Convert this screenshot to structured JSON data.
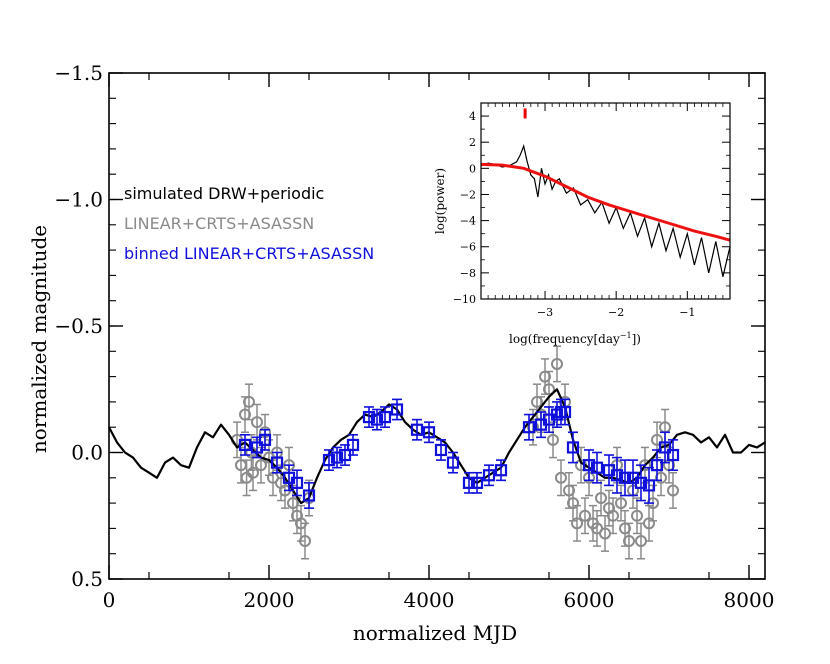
{
  "chart_data": [
    {
      "type": "line",
      "role": "main",
      "xlabel": "normalized MJD",
      "ylabel": "normalized magnitude",
      "xlim": [
        0,
        8200
      ],
      "ylim": [
        0.5,
        -1.5
      ],
      "y_inverted": true,
      "xticks": [
        0,
        2000,
        4000,
        6000,
        8000
      ],
      "xtick_labels": [
        "0",
        "2000",
        "4000",
        "6000",
        "8000"
      ],
      "yticks": [
        -1.5,
        -1.0,
        -0.5,
        0.0,
        0.5
      ],
      "ytick_labels": [
        "−1.5",
        "−1.0",
        "−0.5",
        "0.0",
        "0.5"
      ],
      "legend_position": "middle-left",
      "series": [
        {
          "name": "simulated DRW+periodic",
          "color": "#000000",
          "style": "line",
          "x": [
            0,
            100,
            200,
            300,
            400,
            500,
            600,
            700,
            800,
            900,
            1000,
            1100,
            1200,
            1300,
            1400,
            1500,
            1600,
            1700,
            1800,
            1900,
            2000,
            2100,
            2200,
            2300,
            2400,
            2500,
            2600,
            2700,
            2800,
            2900,
            3000,
            3100,
            3200,
            3300,
            3400,
            3500,
            3600,
            3700,
            3800,
            3900,
            4000,
            4100,
            4200,
            4300,
            4400,
            4500,
            4600,
            4700,
            4800,
            4900,
            5000,
            5100,
            5200,
            5300,
            5400,
            5500,
            5600,
            5700,
            5800,
            5900,
            6000,
            6100,
            6200,
            6300,
            6400,
            6500,
            6600,
            6700,
            6800,
            6900,
            7000,
            7100,
            7200,
            7300,
            7400,
            7500,
            7600,
            7700,
            7800,
            7900,
            8000,
            8100,
            8200
          ],
          "y": [
            -0.1,
            -0.04,
            0.0,
            0.02,
            0.06,
            0.08,
            0.1,
            0.04,
            0.02,
            0.05,
            0.06,
            -0.02,
            -0.08,
            -0.06,
            -0.11,
            -0.07,
            -0.02,
            -0.04,
            -0.01,
            0.02,
            0.03,
            0.06,
            0.1,
            0.15,
            0.2,
            0.18,
            0.1,
            0.03,
            -0.02,
            -0.05,
            -0.07,
            -0.12,
            -0.15,
            -0.14,
            -0.16,
            -0.19,
            -0.17,
            -0.12,
            -0.09,
            -0.07,
            -0.08,
            -0.06,
            -0.04,
            0.0,
            0.05,
            0.1,
            0.12,
            0.1,
            0.08,
            0.06,
            0.0,
            -0.05,
            -0.1,
            -0.14,
            -0.18,
            -0.22,
            -0.25,
            -0.18,
            -0.05,
            0.04,
            0.06,
            0.08,
            0.1,
            0.1,
            0.11,
            0.12,
            0.1,
            0.05,
            0.02,
            -0.02,
            -0.03,
            -0.07,
            -0.08,
            -0.07,
            -0.04,
            -0.06,
            -0.02,
            -0.07,
            0.0,
            0.0,
            -0.03,
            -0.02,
            -0.04
          ]
        },
        {
          "name": "LINEAR+CRTS+ASASSN",
          "color": "#8a8a8a",
          "style": "open-circle-with-errorbars",
          "x": [
            1600,
            1650,
            1700,
            1720,
            1750,
            1780,
            1800,
            1850,
            1900,
            1950,
            2000,
            2050,
            2100,
            2150,
            2200,
            2250,
            2300,
            2350,
            2400,
            2450,
            2500,
            5300,
            5350,
            5400,
            5450,
            5500,
            5550,
            5600,
            5650,
            5700,
            5750,
            5800,
            5850,
            5900,
            5950,
            6000,
            6050,
            6100,
            6150,
            6200,
            6250,
            6300,
            6350,
            6400,
            6450,
            6500,
            6550,
            6600,
            6650,
            6700,
            6750,
            6800,
            6850,
            6900,
            6950,
            7000,
            7050
          ],
          "y": [
            -0.05,
            0.05,
            -0.15,
            0.1,
            -0.2,
            0.0,
            0.08,
            -0.12,
            0.05,
            -0.08,
            0.02,
            0.1,
            0.0,
            0.12,
            0.15,
            0.05,
            0.2,
            0.25,
            0.28,
            0.35,
            0.18,
            -0.1,
            -0.2,
            -0.15,
            -0.3,
            -0.25,
            -0.05,
            -0.35,
            0.1,
            -0.2,
            0.15,
            0.2,
            0.28,
            0.05,
            0.25,
            0.1,
            0.28,
            0.3,
            0.18,
            0.32,
            0.22,
            0.25,
            0.05,
            0.2,
            0.3,
            0.35,
            0.15,
            0.25,
            0.35,
            0.05,
            0.28,
            0.2,
            -0.05,
            0.1,
            -0.1,
            0.05,
            0.15
          ],
          "yerr": [
            0.07,
            0.07,
            0.07,
            0.07,
            0.07,
            0.07,
            0.07,
            0.07,
            0.07,
            0.07,
            0.07,
            0.07,
            0.07,
            0.07,
            0.07,
            0.07,
            0.07,
            0.07,
            0.07,
            0.07,
            0.07,
            0.07,
            0.07,
            0.07,
            0.07,
            0.07,
            0.07,
            0.07,
            0.07,
            0.07,
            0.07,
            0.07,
            0.07,
            0.07,
            0.07,
            0.07,
            0.07,
            0.07,
            0.07,
            0.07,
            0.07,
            0.07,
            0.07,
            0.07,
            0.07,
            0.07,
            0.07,
            0.07,
            0.07,
            0.07,
            0.07,
            0.07,
            0.07,
            0.07,
            0.07,
            0.07,
            0.07
          ]
        },
        {
          "name": "binned LINEAR+CRTS+ASASSN",
          "color": "#1010dd",
          "style": "open-square-with-errorbars",
          "x": [
            1700,
            1850,
            1950,
            2100,
            2250,
            2350,
            2500,
            2750,
            2850,
            2950,
            3050,
            3250,
            3350,
            3450,
            3600,
            3850,
            4000,
            4150,
            4300,
            4500,
            4600,
            4750,
            4900,
            5250,
            5400,
            5500,
            5600,
            5650,
            5700,
            5800,
            6000,
            6100,
            6250,
            6350,
            6450,
            6550,
            6650,
            6750,
            6850,
            6950,
            7050
          ],
          "y": [
            -0.03,
            -0.02,
            -0.05,
            0.04,
            0.1,
            0.12,
            0.17,
            0.03,
            0.02,
            0.01,
            -0.03,
            -0.14,
            -0.13,
            -0.14,
            -0.17,
            -0.09,
            -0.08,
            -0.01,
            0.04,
            0.12,
            0.12,
            0.09,
            0.07,
            -0.1,
            -0.11,
            -0.13,
            -0.15,
            -0.16,
            -0.16,
            -0.02,
            0.05,
            0.06,
            0.07,
            0.09,
            0.1,
            0.1,
            0.12,
            0.13,
            0.05,
            -0.02,
            0.01
          ],
          "yerr": [
            0.04,
            0.04,
            0.04,
            0.04,
            0.05,
            0.05,
            0.05,
            0.04,
            0.04,
            0.04,
            0.04,
            0.04,
            0.04,
            0.04,
            0.04,
            0.04,
            0.04,
            0.04,
            0.04,
            0.04,
            0.04,
            0.04,
            0.04,
            0.05,
            0.05,
            0.05,
            0.05,
            0.05,
            0.05,
            0.06,
            0.06,
            0.06,
            0.06,
            0.07,
            0.07,
            0.07,
            0.07,
            0.07,
            0.06,
            0.06,
            0.06
          ]
        }
      ]
    },
    {
      "type": "line",
      "role": "inset-power-spectrum",
      "xlabel": "log(frequency[day⁻¹])",
      "xlabel_base": "log(frequency[day",
      "xlabel_sup": "−1",
      "xlabel_tail": "])",
      "ylabel": "log(power)",
      "xlim": [
        -3.9,
        -0.4
      ],
      "ylim": [
        -10,
        5
      ],
      "xticks": [
        -3,
        -2,
        -1
      ],
      "xtick_labels": [
        "−3",
        "−2",
        "−1"
      ],
      "yticks": [
        4,
        2,
        0,
        -2,
        -4,
        -6,
        -8,
        -10
      ],
      "ytick_labels": [
        "4",
        "2",
        "0",
        "−2",
        "−4",
        "−6",
        "−8",
        "−10"
      ],
      "marker": {
        "label": "period marker",
        "x": -3.28,
        "y": 4.2,
        "color": "#ee0000"
      },
      "series": [
        {
          "name": "power spectrum",
          "color": "#000000",
          "x": [
            -3.9,
            -3.8,
            -3.7,
            -3.6,
            -3.5,
            -3.4,
            -3.35,
            -3.3,
            -3.25,
            -3.2,
            -3.15,
            -3.1,
            -3.05,
            -3.0,
            -2.95,
            -2.9,
            -2.85,
            -2.8,
            -2.7,
            -2.6,
            -2.5,
            -2.4,
            -2.3,
            -2.2,
            -2.1,
            -2.0,
            -1.9,
            -1.8,
            -1.7,
            -1.6,
            -1.5,
            -1.4,
            -1.3,
            -1.2,
            -1.1,
            -1.0,
            -0.9,
            -0.8,
            -0.7,
            -0.6,
            -0.5,
            -0.4
          ],
          "y": [
            0.2,
            0.4,
            0.3,
            0.1,
            0.2,
            0.5,
            1.0,
            1.7,
            0.5,
            -0.5,
            -0.8,
            -2.2,
            0.0,
            -1.2,
            -0.5,
            -1.6,
            -1.0,
            -0.8,
            -1.9,
            -1.5,
            -2.8,
            -2.4,
            -3.4,
            -2.6,
            -4.2,
            -3.0,
            -4.6,
            -3.4,
            -5.2,
            -3.8,
            -6.0,
            -4.2,
            -6.3,
            -4.6,
            -6.8,
            -5.0,
            -7.4,
            -5.3,
            -8.0,
            -5.6,
            -8.3,
            -6.0
          ]
        },
        {
          "name": "model fit",
          "color": "#ee1111",
          "x": [
            -3.9,
            -3.6,
            -3.3,
            -3.0,
            -2.7,
            -2.4,
            -2.1,
            -1.8,
            -1.5,
            -1.2,
            -0.9,
            -0.6,
            -0.4
          ],
          "y": [
            0.3,
            0.25,
            0.0,
            -0.6,
            -1.4,
            -2.2,
            -2.8,
            -3.3,
            -3.8,
            -4.3,
            -4.8,
            -5.2,
            -5.5
          ]
        }
      ]
    }
  ]
}
